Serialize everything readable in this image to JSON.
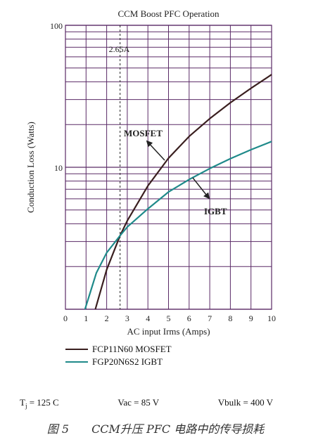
{
  "chart_data": {
    "type": "line",
    "title": "CCM Boost PFC Operation",
    "xlabel": "AC input Irms (Amps)",
    "ylabel": "Conduction Loss (Watts)",
    "xlim": [
      0,
      10
    ],
    "ylim": [
      1,
      100
    ],
    "y_scale": "log",
    "x_ticks": [
      "0",
      "1",
      "2",
      "3",
      "4",
      "5",
      "6",
      "7",
      "8",
      "9",
      "10"
    ],
    "y_ticks": [
      "100",
      "10"
    ],
    "grid": true,
    "marker": {
      "x": 2.65,
      "label": "2.65A"
    },
    "series": [
      {
        "name": "FCP11N60 MOSFET",
        "label": "MOSFET",
        "color": "#3a1f1f",
        "x": [
          1.45,
          2,
          2.65,
          3,
          4,
          5,
          6,
          7,
          8,
          9,
          10
        ],
        "y": [
          1.0,
          1.9,
          3.3,
          4.2,
          7.4,
          11.6,
          16.5,
          22.0,
          28.5,
          36.0,
          45.0
        ]
      },
      {
        "name": "FGP20N6S2 IGBT",
        "label": "IGBT",
        "color": "#1f8a8a",
        "x": [
          0.95,
          1.5,
          2,
          2.65,
          3,
          4,
          5,
          6,
          7,
          8,
          9,
          10
        ],
        "y": [
          1.0,
          1.8,
          2.5,
          3.3,
          3.8,
          5.1,
          6.7,
          8.2,
          9.8,
          11.5,
          13.3,
          15.2
        ]
      }
    ]
  },
  "conditions": {
    "tj": "T",
    "tj_sub": "j",
    "tj_value": " = 125 C",
    "vac": "Vac = 85 V",
    "vbulk": "Vbulk = 400 V"
  },
  "caption": {
    "fig": "图 5",
    "text": "CCM升压 PFC 电路中的传导损耗"
  }
}
